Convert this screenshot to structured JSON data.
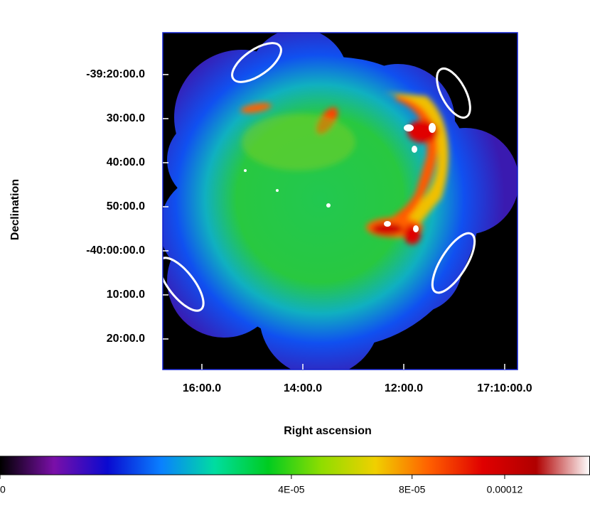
{
  "chart_data": {
    "type": "image",
    "xlabel": "Right ascension",
    "ylabel": "Declination",
    "xlim": [
      17.27958,
      17.16244
    ],
    "ylim": [
      -40.449,
      -39.175
    ],
    "xticks": [
      {
        "value": 17.26667,
        "label": "16:00.0"
      },
      {
        "value": 17.23333,
        "label": "14:00.0"
      },
      {
        "value": 17.2,
        "label": "12:00.0"
      },
      {
        "value": 17.16667,
        "label": "17:10:00.0"
      }
    ],
    "yticks": [
      {
        "value": -39.33333,
        "label": "-39:20:00.0"
      },
      {
        "value": -39.5,
        "label": "30:00.0"
      },
      {
        "value": -39.66667,
        "label": "40:00.0"
      },
      {
        "value": -39.83333,
        "label": "50:00.0"
      },
      {
        "value": -40,
        "label": "-40:00:00.0"
      },
      {
        "value": -40.16667,
        "label": "10:00.0"
      },
      {
        "value": -40.33333,
        "label": "20:00.0"
      }
    ],
    "colorbar": {
      "lim": [
        0,
        0.000164
      ],
      "scale": "sqrt",
      "ticks": [
        0,
        {
          "value": 4e-05,
          "label": "4E-05"
        },
        {
          "value": 8e-05,
          "label": "8E-05"
        },
        0.00012
      ],
      "colors": [
        "#000000",
        "#7a0fa8",
        "#0a0ad0",
        "#0a80ff",
        "#00dda0",
        "#00cc20",
        "#90dd00",
        "#f0d000",
        "#ff6000",
        "#e00000",
        "#b00000",
        "#ffffff"
      ]
    }
  }
}
